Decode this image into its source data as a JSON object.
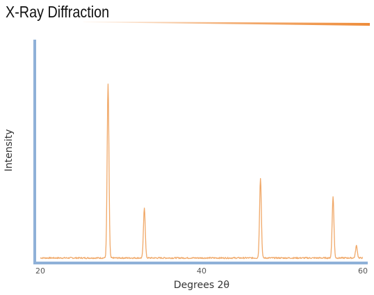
{
  "chart_data": {
    "type": "line",
    "title": "X-Ray Diffraction",
    "xlabel": "Degrees 2θ",
    "ylabel": "Intensity",
    "xlim": [
      20,
      60
    ],
    "ylim": [
      0,
      1
    ],
    "x_ticks": [
      "20",
      "40",
      "60"
    ],
    "grid": false,
    "series": [
      {
        "peaks": [
          {
            "x": 28.4,
            "y": 1.0
          },
          {
            "x": 32.9,
            "y": 0.29
          },
          {
            "x": 47.3,
            "y": 0.46
          },
          {
            "x": 56.3,
            "y": 0.35
          },
          {
            "x": 59.2,
            "y": 0.07
          }
        ],
        "baseline": 0.005
      }
    ],
    "colors": {
      "line": "#f0a868",
      "axis": "#8fb1d8",
      "title_rule": "#ee8c3a"
    }
  }
}
